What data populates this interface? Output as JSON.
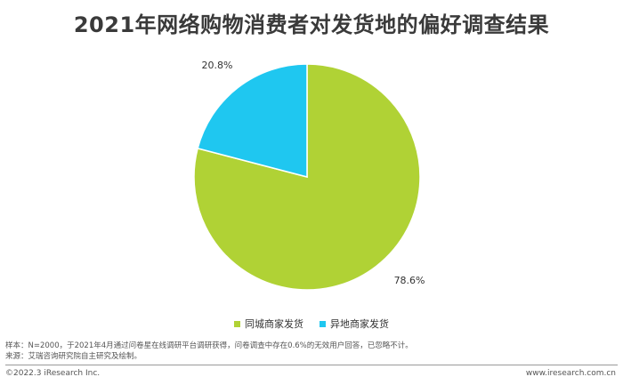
{
  "chart_data": {
    "type": "pie",
    "title": "2021年网络购物消费者对发货地的偏好调查结果",
    "slices": [
      {
        "label": "同城商家发货",
        "value": 78.6,
        "value_label": "78.6%",
        "color": "#b0d235"
      },
      {
        "label": "异地商家发货",
        "value": 20.8,
        "value_label": "20.8%",
        "color": "#1fc7f0"
      }
    ],
    "legend_placement": "bottom"
  },
  "notes": {
    "sample": "样本：N=2000，于2021年4月通过问卷星在线调研平台调研获得，问卷调查中存在0.6%的无效用户回答，已忽略不计。",
    "source": "来源：艾瑞咨询研究院自主研究及绘制。"
  },
  "footer": {
    "copyright": "©2022.3 iResearch Inc.",
    "website": "www.iresearch.com.cn"
  }
}
